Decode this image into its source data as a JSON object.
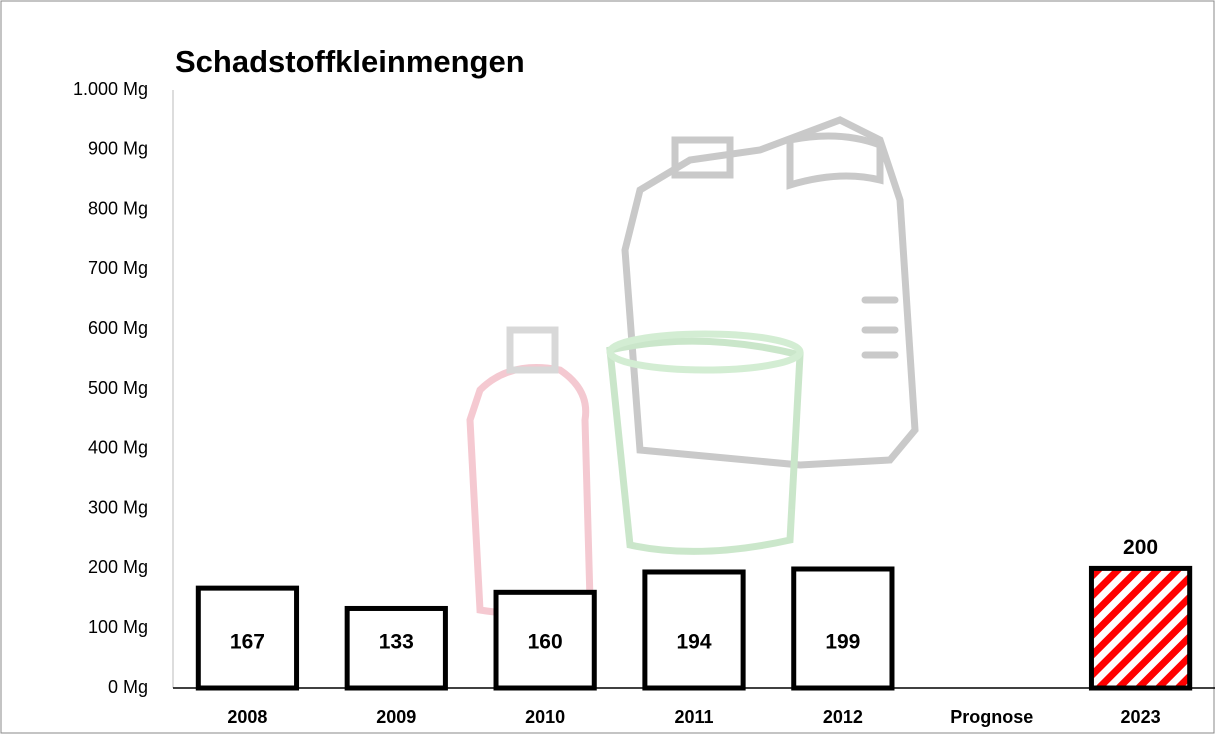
{
  "chart_data": {
    "type": "bar",
    "title": "Schadstoffkleinmengen",
    "categories": [
      "2008",
      "2009",
      "2010",
      "2011",
      "2012",
      "Prognose",
      "2023"
    ],
    "values": [
      167,
      133,
      160,
      194,
      199,
      null,
      200
    ],
    "colors": [
      "#ffffff",
      "#ffffff",
      "#ffffff",
      "#ffffff",
      "#ffffff",
      null,
      "#ff0000"
    ],
    "hatched": [
      false,
      false,
      false,
      false,
      false,
      false,
      true
    ],
    "edge_color": "#000000",
    "ylim": [
      0,
      1000
    ],
    "yticks": [
      {
        "value": 0,
        "label": "0 Mg"
      },
      {
        "value": 100,
        "label": "100 Mg"
      },
      {
        "value": 200,
        "label": "200 Mg"
      },
      {
        "value": 300,
        "label": "300 Mg"
      },
      {
        "value": 400,
        "label": "400 Mg"
      },
      {
        "value": 500,
        "label": "500 Mg"
      },
      {
        "value": 600,
        "label": "600 Mg"
      },
      {
        "value": 700,
        "label": "700 Mg"
      },
      {
        "value": 800,
        "label": "800 Mg"
      },
      {
        "value": 900,
        "label": "900 Mg"
      },
      {
        "value": 1000,
        "label": "1.000 Mg"
      }
    ],
    "grid": false
  }
}
